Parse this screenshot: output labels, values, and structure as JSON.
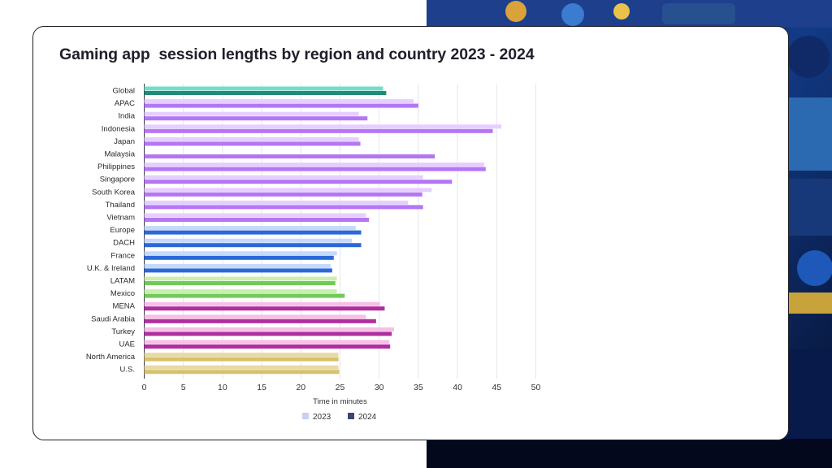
{
  "chart_data": {
    "type": "bar",
    "orientation": "horizontal",
    "title": "Gaming app  session lengths by region and country 2023 - 2024",
    "xlabel": "Time in minutes",
    "ylabel": "",
    "xlim": [
      0,
      50
    ],
    "x_ticks": [
      "0",
      "5",
      "10",
      "15",
      "20",
      "25",
      "30",
      "35",
      "40",
      "45",
      "50"
    ],
    "grid": true,
    "legend_position": "bottom-center",
    "categories": [
      "Global",
      "APAC",
      "India",
      "Indonesia",
      "Japan",
      "Malaysia",
      "Philippines",
      "Singapore",
      "South Korea",
      "Thailand",
      "Vietnam",
      "Europe",
      "DACH",
      "France",
      "U.K. & Ireland",
      "LATAM",
      "Mexico",
      "MENA",
      "Saudi Arabia",
      "Turkey",
      "UAE",
      "North America",
      "U.S."
    ],
    "series": [
      {
        "name": "2023",
        "values": [
          30.5,
          34.4,
          27.4,
          45.6,
          27.4,
          0,
          43.4,
          35.6,
          36.7,
          33.7,
          28.3,
          27.0,
          26.5,
          24.6,
          23.8,
          24.6,
          24.6,
          30.1,
          28.3,
          31.9,
          31.3,
          24.8,
          24.8
        ]
      },
      {
        "name": "2024",
        "values": [
          30.9,
          35.0,
          28.5,
          44.5,
          27.6,
          37.1,
          43.6,
          39.3,
          35.5,
          35.6,
          28.7,
          27.7,
          27.7,
          24.2,
          24.0,
          24.4,
          25.6,
          30.7,
          29.6,
          31.6,
          31.4,
          24.8,
          24.9
        ]
      }
    ],
    "group_colors": [
      {
        "c2023": "#72dec8",
        "c2024": "#238a78"
      },
      {
        "c2023": "#e6ceff",
        "c2024": "#b476f5"
      },
      {
        "c2023": "#c4d9fb",
        "c2024": "#2b68d8"
      },
      {
        "c2023": "#c8f0ac",
        "c2024": "#72c95a"
      },
      {
        "c2023": "#f7bfe8",
        "c2024": "#b02e9e"
      },
      {
        "c2023": "#ead9a6",
        "c2024": "#d5c26b"
      }
    ],
    "group_of_category": [
      0,
      1,
      1,
      1,
      1,
      1,
      1,
      1,
      1,
      1,
      1,
      2,
      2,
      2,
      2,
      3,
      3,
      4,
      4,
      4,
      4,
      5,
      5
    ],
    "legend": [
      {
        "label": "2023",
        "color": "#c8cff0"
      },
      {
        "label": "2024",
        "color": "#3b4678"
      }
    ]
  }
}
